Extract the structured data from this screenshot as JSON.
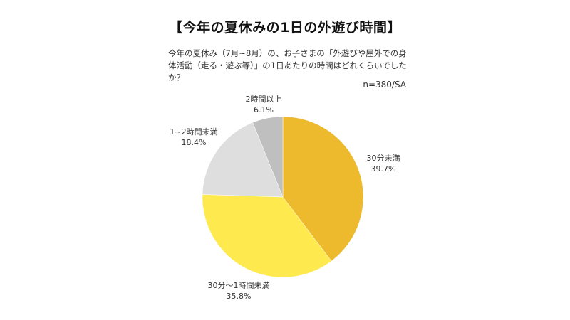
{
  "title": "【今年の夏休みの1日の外遊び時間】",
  "question": "今年の夏休み（7月~8月）の、お子さまの「外遊びや屋外での身体活動（走る・遊ぶ等）」の1日あたりの時間はどれくらいでしたか？",
  "sample": "n=380/SA",
  "labels": [
    {
      "name": "30分未満",
      "value": "39.7%"
    },
    {
      "name": "30分〜1時間未満",
      "value": "35.8%"
    },
    {
      "name": "1~2時間未満",
      "value": "18.4%"
    },
    {
      "name": "2時間以上",
      "value": "6.1%"
    }
  ],
  "chart_data": {
    "type": "pie",
    "title": "【今年の夏休みの1日の外遊び時間】",
    "subtitle": "今年の夏休み（7月~8月）の、お子さまの「外遊びや屋外での身体活動（走る・遊ぶ等）」の1日あたりの時間はどれくらいでしたか？",
    "annotation": "n=380/SA",
    "categories": [
      "30分未満",
      "30分〜1時間未満",
      "1~2時間未満",
      "2時間以上"
    ],
    "values": [
      39.7,
      35.8,
      18.4,
      6.1
    ],
    "unit": "%",
    "colors": [
      "#EDB92D",
      "#FEE94E",
      "#DEDEDE",
      "#BFBFBF"
    ],
    "start_angle": "12 o'clock",
    "direction": "clockwise",
    "legend": "none (data labels outside slices)"
  }
}
